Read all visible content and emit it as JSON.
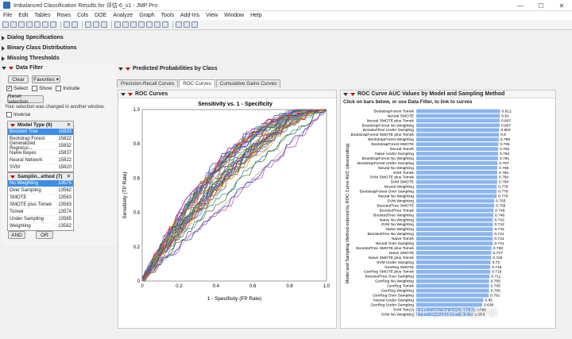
{
  "window": {
    "title": "Imbalanced Classification Results for 评估-6_v1 - JMP Pro",
    "controls": [
      "—",
      "☐",
      "✕"
    ]
  },
  "menu": [
    "File",
    "Edit",
    "Tables",
    "Rows",
    "Cols",
    "DOE",
    "Analyze",
    "Graph",
    "Tools",
    "Add-Ins",
    "View",
    "Window",
    "Help"
  ],
  "outlines": {
    "dialog_specs": "Dialog Specifications",
    "binary_dist": "Binary Class Distributions",
    "missing_thresh": "Missing Thresholds",
    "data_filter": "Data Filter",
    "pred_probs": "Predicted Probabilities by Class"
  },
  "filter": {
    "clear": "Clear",
    "favorites": "Favorites",
    "select_label": "Select",
    "show_label": "Show",
    "include_label": "Include",
    "reset": "Reset selection",
    "notice": "Your selection was changed in another window.",
    "inverse": "Inverse",
    "model_type_header": "Model Type (6)",
    "model_types": [
      {
        "name": "Boosted Tree",
        "count": "15833",
        "selected": true
      },
      {
        "name": "Bootstrap Forest",
        "count": "15822",
        "selected": false
      },
      {
        "name": "Generalized Regressi...",
        "count": "15832",
        "selected": false
      },
      {
        "name": "Naive Bayes",
        "count": "15837",
        "selected": false
      },
      {
        "name": "Neural Network",
        "count": "15822",
        "selected": false
      },
      {
        "name": "SVM",
        "count": "15820",
        "selected": false
      }
    ],
    "sampling_header": "Samplin...ethod (7)",
    "sampling": [
      {
        "name": "No Weighting",
        "count": "13575",
        "selected": true
      },
      {
        "name": "Over Sampling",
        "count": "13562",
        "selected": false
      },
      {
        "name": "SMOTE",
        "count": "13563",
        "selected": false
      },
      {
        "name": "SMOTE plus Tomek",
        "count": "13563",
        "selected": false
      },
      {
        "name": "Tomek",
        "count": "13574",
        "selected": false
      },
      {
        "name": "Under Sampling",
        "count": "13565",
        "selected": false
      },
      {
        "name": "Weighting",
        "count": "13562",
        "selected": false
      }
    ],
    "and": "AND",
    "or": "OR"
  },
  "tabs": [
    "Precision-Recall Curves",
    "ROC Curves",
    "Cumulative Gains Curves"
  ],
  "roc": {
    "panel_title": "ROC Curves",
    "chart_title": "Sensitivity vs. 1 - Specificity",
    "xlabel": "1 - Specificity (FP Rate)",
    "ylabel": "Sensitivity (TP Rate)",
    "ticks": [
      "0",
      "0.2",
      "0.4",
      "0.6",
      "0.8",
      "1.0"
    ],
    "colors": [
      "#1f3f99",
      "#c23bbd",
      "#2e8b57",
      "#7b68ee",
      "#d2691e",
      "#20a0a0",
      "#8b4513",
      "#4682b4",
      "#9acd32",
      "#b22222",
      "#6a5acd",
      "#ff8c00",
      "#008b8b",
      "#556b2f"
    ]
  },
  "auc": {
    "panel_title": "ROC Curve AUC Values by Model and Sampling Method",
    "subtitle": "Click on bars below, or use Data Filter, to link to curves",
    "ylabel": "Model and Sampling Method ordered by ROC Curve AUC (descending)",
    "bar_color": "#8ab4ee"
  },
  "chart_data": {
    "type": "bar",
    "orientation": "horizontal",
    "categories": [
      "BootstrapForest Tomek",
      "Neural SMOTE",
      "Neural SMOTE plus Tomek",
      "BootstrapForest No Weighting",
      "BoostedTree Under Sampling",
      "BootstrapForest SMOTE plus Tomek",
      "BootstrapForest Weighting",
      "BootstrapForest SMOTE",
      "Neural Tomek",
      "Naive Under Sampling",
      "BootstrapForest No Weighting",
      "BootstrapForest Under Sampling",
      "Neural No Weighting",
      "SVM Tomek",
      "SVM SMOTE plus Tomek",
      "SVM SMOTE",
      "Neural Weighting",
      "BootstrapForest Over Sampling",
      "Neural No Weighting",
      "SVM Weighting",
      "BoostedTree SMOTE",
      "BoostedTree Tomek",
      "BoostedTree Weighting",
      "Naive No Weighting",
      "SVM No Weighting",
      "Naive Weighting",
      "BoostedTree No Weighting",
      "Naive Tomek",
      "Neural Over Sampling",
      "BoostedTree SMOTE plus Tomek",
      "Naive SMOTE",
      "Naive SMOTE plus Tomek",
      "SVM Under Sampling",
      "GenReg SMOTE",
      "GenReg SMOTE plus Tomek",
      "BoostedTree Over Sampling",
      "GenReg No Weighting",
      "GenReg Tomek",
      "GenReg Weighting",
      "GenReg Over Sampling",
      "Neural Under Sampling",
      "GenReg Under Sampling",
      "SVM Tomek",
      "SVM No Weighting"
    ],
    "values": [
      0.812,
      0.81,
      0.807,
      0.807,
      0.803,
      0.8,
      0.799,
      0.795,
      0.792,
      0.792,
      0.791,
      0.787,
      0.785,
      0.784,
      0.784,
      0.784,
      0.779,
      0.778,
      0.778,
      0.755,
      0.755,
      0.748,
      0.746,
      0.742,
      0.742,
      0.742,
      0.741,
      0.741,
      0.741,
      0.729,
      0.727,
      0.725,
      0.72,
      0.716,
      0.716,
      0.711,
      0.705,
      0.705,
      0.705,
      0.701,
      0.65,
      0.638,
      0.569,
      0.553
    ],
    "xlim": [
      0,
      1
    ],
    "ylabel": "Model and Sampling Method ordered by ROC Curve AUC (descending)"
  },
  "watermark": "知乎 @JMP数据分析"
}
